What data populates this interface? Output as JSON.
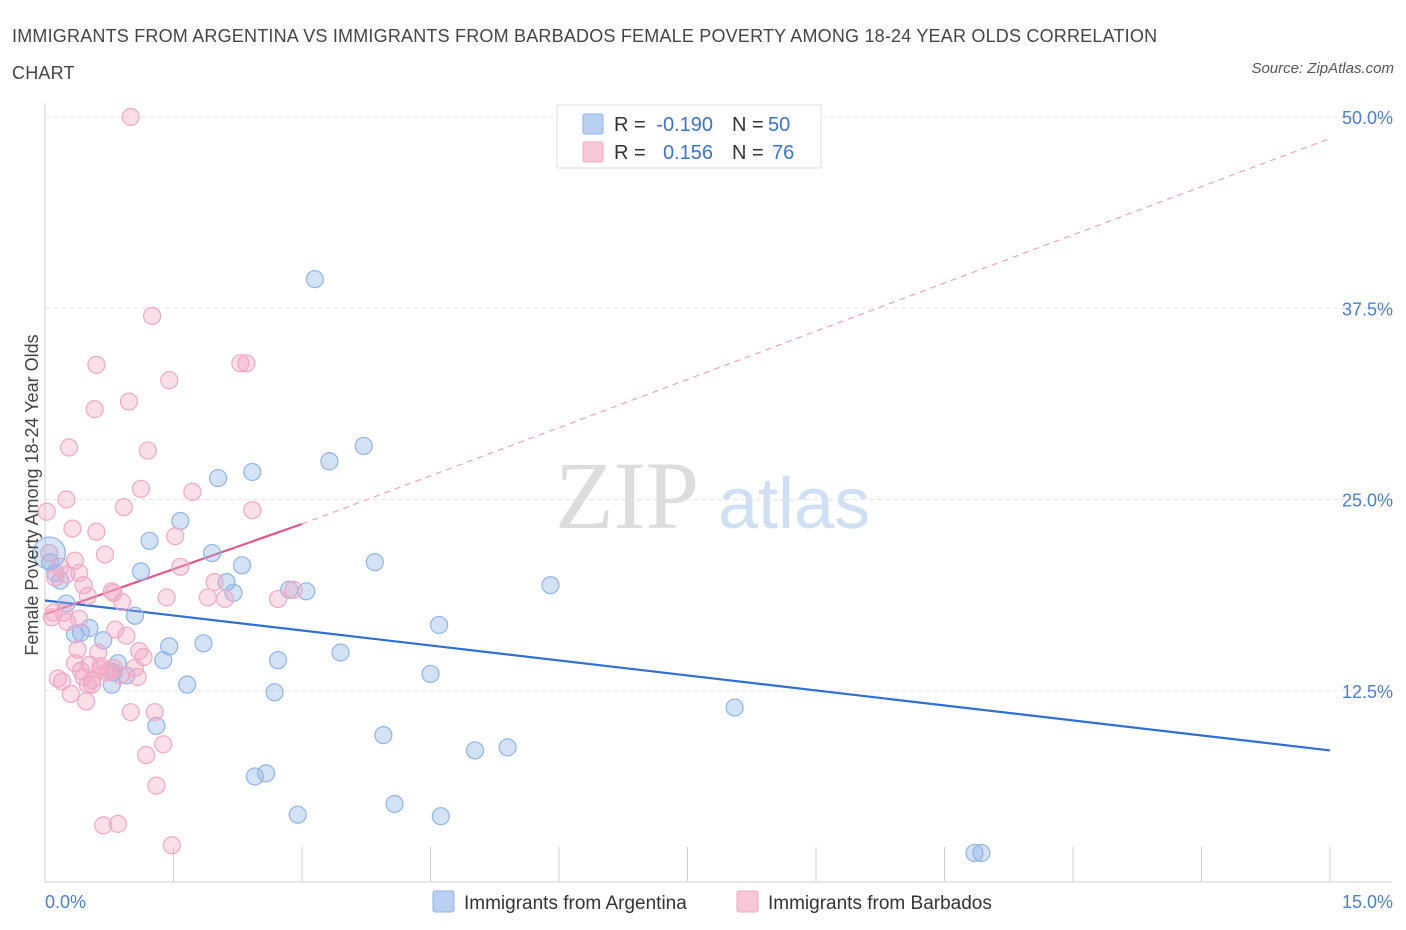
{
  "title": "IMMIGRANTS FROM ARGENTINA VS IMMIGRANTS FROM BARBADOS FEMALE POVERTY AMONG 18-24 YEAR OLDS CORRELATION CHART",
  "source": "Source: ZipAtlas.com",
  "watermark": {
    "zip": "ZIP",
    "atlas": "atlas"
  },
  "chart_data": {
    "type": "scatter",
    "ylabel": "Female Poverty Among 18-24 Year Olds",
    "xlim": [
      0,
      15
    ],
    "ylim": [
      0,
      50
    ],
    "x_tick_labels": [
      "0.0%",
      "15.0%"
    ],
    "y_ticks": [
      12.5,
      25.0,
      37.5,
      50.0
    ],
    "y_tick_labels": [
      "12.5%",
      "25.0%",
      "37.5%",
      "50.0%"
    ],
    "grid": true,
    "legend_placement": "top-center",
    "stats": [
      {
        "r_label": "R =",
        "r_value": "-0.190",
        "n_label": "N =",
        "n_value": "50"
      },
      {
        "r_label": "R =",
        "r_value": "0.156",
        "n_label": "N =",
        "n_value": "76"
      }
    ],
    "series": [
      {
        "name": "Immigrants from Argentina",
        "color": "#8fb4e8",
        "line_color": "#2f6fd0",
        "trend": {
          "x": [
            0,
            15
          ],
          "y": [
            18.4,
            8.6
          ]
        },
        "points": [
          [
            0.06,
            20.9
          ],
          [
            0.12,
            20.2
          ],
          [
            0.18,
            19.7
          ],
          [
            0.25,
            18.2
          ],
          [
            0.35,
            16.2
          ],
          [
            0.42,
            16.3
          ],
          [
            0.52,
            16.6
          ],
          [
            0.68,
            15.8
          ],
          [
            0.8,
            13.7
          ],
          [
            0.85,
            14.3
          ],
          [
            0.78,
            12.9
          ],
          [
            0.95,
            13.5
          ],
          [
            1.05,
            17.4
          ],
          [
            1.12,
            20.3
          ],
          [
            1.22,
            22.3
          ],
          [
            1.3,
            10.2
          ],
          [
            1.38,
            14.5
          ],
          [
            1.45,
            15.4
          ],
          [
            1.58,
            23.6
          ],
          [
            1.66,
            12.9
          ],
          [
            1.85,
            15.6
          ],
          [
            1.95,
            21.5
          ],
          [
            2.02,
            26.4
          ],
          [
            2.12,
            19.6
          ],
          [
            2.2,
            18.9
          ],
          [
            2.3,
            20.7
          ],
          [
            2.42,
            26.8
          ],
          [
            2.45,
            6.9
          ],
          [
            2.58,
            7.1
          ],
          [
            2.68,
            12.4
          ],
          [
            2.72,
            14.5
          ],
          [
            2.85,
            19.1
          ],
          [
            2.95,
            4.4
          ],
          [
            3.05,
            19.0
          ],
          [
            3.15,
            39.4
          ],
          [
            3.32,
            27.5
          ],
          [
            3.45,
            15.0
          ],
          [
            3.72,
            28.5
          ],
          [
            3.85,
            20.9
          ],
          [
            3.95,
            9.6
          ],
          [
            4.08,
            5.1
          ],
          [
            4.5,
            13.6
          ],
          [
            4.6,
            16.8
          ],
          [
            4.62,
            4.3
          ],
          [
            5.02,
            8.6
          ],
          [
            5.4,
            8.8
          ],
          [
            5.9,
            19.4
          ],
          [
            8.05,
            11.4
          ],
          [
            10.85,
            1.9
          ],
          [
            10.93,
            1.9
          ]
        ]
      },
      {
        "name": "Immigrants from Barbados",
        "color": "#f2a7c3",
        "line_color": "#e0588a",
        "trend_solid": {
          "x": [
            0,
            3.0
          ],
          "y": [
            17.5,
            23.4
          ]
        },
        "trend_dashed": {
          "x": [
            3.0,
            15
          ],
          "y": [
            23.4,
            48.6
          ]
        },
        "points": [
          [
            0.02,
            24.2
          ],
          [
            0.05,
            21.5
          ],
          [
            0.08,
            17.3
          ],
          [
            0.1,
            17.6
          ],
          [
            0.12,
            19.9
          ],
          [
            0.15,
            13.3
          ],
          [
            0.18,
            20.6
          ],
          [
            0.2,
            13.1
          ],
          [
            0.22,
            17.6
          ],
          [
            0.25,
            25.0
          ],
          [
            0.25,
            20.1
          ],
          [
            0.28,
            28.4
          ],
          [
            0.3,
            12.3
          ],
          [
            0.32,
            23.1
          ],
          [
            0.35,
            21.0
          ],
          [
            0.35,
            14.3
          ],
          [
            0.38,
            15.2
          ],
          [
            0.4,
            17.2
          ],
          [
            0.42,
            13.8
          ],
          [
            0.45,
            13.4
          ],
          [
            0.45,
            19.4
          ],
          [
            0.48,
            11.8
          ],
          [
            0.5,
            18.7
          ],
          [
            0.52,
            14.2
          ],
          [
            0.55,
            12.9
          ],
          [
            0.55,
            13.2
          ],
          [
            0.58,
            30.9
          ],
          [
            0.6,
            33.8
          ],
          [
            0.6,
            22.9
          ],
          [
            0.62,
            15.0
          ],
          [
            0.65,
            13.9
          ],
          [
            0.68,
            3.7
          ],
          [
            0.7,
            21.4
          ],
          [
            0.72,
            13.7
          ],
          [
            0.75,
            13.8
          ],
          [
            0.78,
            19.0
          ],
          [
            0.8,
            18.9
          ],
          [
            0.8,
            14.0
          ],
          [
            0.82,
            16.5
          ],
          [
            0.85,
            3.8
          ],
          [
            0.88,
            13.5
          ],
          [
            0.9,
            18.3
          ],
          [
            0.92,
            24.5
          ],
          [
            0.95,
            16.1
          ],
          [
            0.98,
            31.4
          ],
          [
            1.0,
            11.1
          ],
          [
            1.05,
            14.0
          ],
          [
            1.08,
            13.4
          ],
          [
            1.1,
            15.1
          ],
          [
            1.12,
            25.7
          ],
          [
            1.15,
            14.7
          ],
          [
            1.18,
            8.3
          ],
          [
            1.2,
            28.2
          ],
          [
            1.25,
            37.0
          ],
          [
            1.28,
            11.1
          ],
          [
            1.3,
            6.3
          ],
          [
            1.38,
            9.0
          ],
          [
            1.42,
            18.6
          ],
          [
            1.45,
            32.8
          ],
          [
            1.48,
            2.4
          ],
          [
            1.52,
            22.6
          ],
          [
            1.58,
            20.6
          ],
          [
            1.72,
            25.5
          ],
          [
            1.9,
            18.6
          ],
          [
            1.98,
            19.6
          ],
          [
            2.1,
            18.5
          ],
          [
            2.28,
            33.9
          ],
          [
            2.35,
            33.9
          ],
          [
            2.42,
            24.3
          ],
          [
            2.72,
            18.5
          ],
          [
            2.9,
            19.1
          ],
          [
            0.26,
            17.0
          ],
          [
            0.4,
            20.2
          ],
          [
            0.65,
            14.1
          ],
          [
            1.0,
            50.0
          ],
          [
            0.5,
            12.9
          ]
        ]
      }
    ]
  }
}
